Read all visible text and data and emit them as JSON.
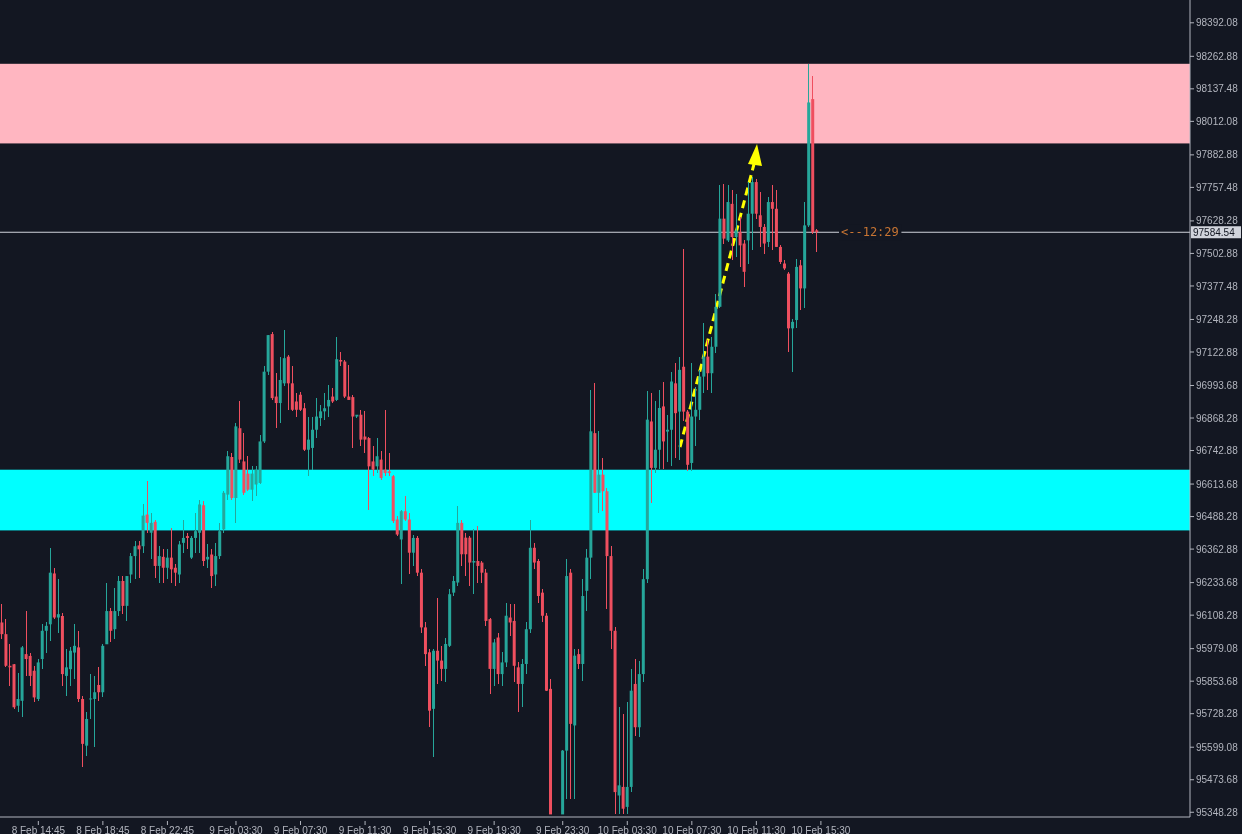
{
  "chart_data": {
    "type": "candlestick",
    "categories": [
      null,
      null,
      null,
      null,
      null,
      null,
      null,
      null,
      null,
      "8 Feb 14:45",
      null,
      null,
      null,
      null,
      null,
      null,
      null,
      null,
      null,
      null,
      null,
      null,
      null,
      null,
      null,
      "8 Feb 18:45",
      null,
      null,
      null,
      null,
      null,
      null,
      null,
      null,
      null,
      null,
      null,
      null,
      null,
      null,
      null,
      "8 Feb 22:45",
      null,
      null,
      null,
      null,
      null,
      null,
      null,
      null,
      null,
      null,
      null,
      null,
      null,
      null,
      null,
      null,
      "9 Feb 03:30",
      null,
      null,
      null,
      null,
      null,
      null,
      null,
      null,
      null,
      null,
      null,
      null,
      null,
      null,
      null,
      "9 Feb 07:30",
      null,
      null,
      null,
      null,
      null,
      null,
      null,
      null,
      null,
      null,
      null,
      null,
      null,
      null,
      null,
      "9 Feb 11:30",
      null,
      null,
      null,
      null,
      null,
      null,
      null,
      null,
      null,
      null,
      null,
      null,
      null,
      null,
      null,
      "9 Feb 15:30",
      null,
      null,
      null,
      null,
      null,
      null,
      null,
      null,
      null,
      null,
      null,
      null,
      null,
      null,
      null,
      "9 Feb 19:30",
      null,
      null,
      null,
      null,
      null,
      null,
      null,
      null,
      null,
      null,
      null,
      null,
      null,
      null,
      null,
      null,
      "9 Feb 23:30",
      null,
      null,
      null,
      null,
      null,
      null,
      null,
      null,
      null,
      null,
      null,
      null,
      null,
      null,
      null,
      "10 Feb 03:30",
      null,
      null,
      null,
      null,
      null,
      null,
      null,
      null,
      null,
      null,
      null,
      null,
      null,
      null,
      null,
      "10 Feb 07:30",
      null,
      null,
      null,
      null,
      null,
      null,
      null,
      null,
      null,
      null,
      null,
      null,
      null,
      null,
      null,
      "10 Feb 11:30",
      null,
      null,
      null,
      null,
      null,
      null,
      null,
      null,
      null,
      null,
      null,
      null,
      null,
      null,
      null,
      "10 Feb 15:30",
      null,
      null,
      null,
      null,
      null,
      null,
      null,
      null,
      null,
      null,
      null,
      null,
      null,
      null,
      null,
      null,
      null,
      null,
      null,
      null,
      null,
      null,
      null,
      null,
      null,
      null,
      null,
      null,
      null,
      null,
      null,
      null,
      null,
      null,
      null,
      null,
      null,
      null,
      null,
      null,
      null,
      null,
      null,
      null,
      null,
      null,
      null,
      null,
      null,
      null,
      null,
      null,
      null,
      null,
      null,
      null,
      null,
      null,
      null,
      null,
      null,
      null,
      null,
      null,
      null,
      null,
      null,
      null,
      null,
      null,
      null,
      null,
      null,
      null,
      null,
      null,
      null,
      null,
      null,
      null,
      null,
      null,
      null,
      null,
      null,
      null,
      null,
      null,
      null,
      null,
      null
    ],
    "ohlc": [
      [
        96080,
        96150,
        96016,
        96035
      ],
      [
        96035,
        96093,
        95907,
        95913
      ],
      [
        95913,
        95996,
        95836,
        95907
      ],
      [
        95919,
        95919,
        95746,
        95753
      ],
      [
        95759,
        95887,
        95734,
        95785
      ],
      [
        95778,
        95990,
        95714,
        95984
      ],
      [
        95958,
        96124,
        95874,
        95939
      ],
      [
        95951,
        95964,
        95836,
        95874
      ],
      [
        95894,
        95913,
        95772,
        95791
      ],
      [
        95785,
        95939,
        95778,
        95926
      ],
      [
        95939,
        96073,
        95900,
        96048
      ],
      [
        96048,
        96080,
        95964,
        96067
      ],
      [
        96073,
        96368,
        96009,
        96272
      ],
      [
        96269,
        96291,
        96093,
        96099
      ],
      [
        96099,
        96246,
        96041,
        96112
      ],
      [
        96105,
        96118,
        95836,
        95881
      ],
      [
        95874,
        95977,
        95798,
        95907
      ],
      [
        95900,
        95984,
        95836,
        95971
      ],
      [
        95964,
        96073,
        95862,
        95990
      ],
      [
        95984,
        96048,
        95772,
        95785
      ],
      [
        95785,
        95798,
        95522,
        95612
      ],
      [
        95605,
        95734,
        95567,
        95708
      ],
      [
        95785,
        95881,
        95708,
        95787
      ],
      [
        95785,
        95874,
        95599,
        95811
      ],
      [
        95839,
        95907,
        95778,
        95811
      ],
      [
        95811,
        95996,
        95791,
        95990
      ],
      [
        95996,
        96233,
        95996,
        96124
      ],
      [
        96124,
        96137,
        96003,
        96048
      ],
      [
        96054,
        96214,
        96016,
        96124
      ],
      [
        96124,
        96259,
        96105,
        96240
      ],
      [
        96240,
        96259,
        96112,
        96144
      ],
      [
        96144,
        96259,
        96086,
        96259
      ],
      [
        96265,
        96349,
        96233,
        96336
      ],
      [
        96336,
        96394,
        96246,
        96374
      ],
      [
        96377,
        96394,
        96253,
        96362
      ],
      [
        96374,
        96535,
        96349,
        96492
      ],
      [
        96496,
        96624,
        96426,
        96464
      ],
      [
        96426,
        96503,
        96323,
        96464
      ],
      [
        96468,
        96477,
        96253,
        96298
      ],
      [
        96298,
        96374,
        96233,
        96336
      ],
      [
        96333,
        96362,
        96233,
        96291
      ],
      [
        96291,
        96362,
        96246,
        96330
      ],
      [
        96330,
        96445,
        96233,
        96285
      ],
      [
        96291,
        96304,
        96221,
        96272
      ],
      [
        96265,
        96394,
        96233,
        96381
      ],
      [
        96387,
        96477,
        96349,
        96406
      ],
      [
        96413,
        96426,
        96362,
        96406
      ],
      [
        96330,
        96413,
        96323,
        96406
      ],
      [
        96406,
        96503,
        96349,
        96432
      ],
      [
        96426,
        96554,
        96349,
        96535
      ],
      [
        96532,
        96548,
        96298,
        96317
      ],
      [
        96323,
        96381,
        96291,
        96333
      ],
      [
        96342,
        96362,
        96214,
        96259
      ],
      [
        96265,
        96387,
        96221,
        96336
      ],
      [
        96336,
        96464,
        96323,
        96432
      ],
      [
        96439,
        96586,
        96426,
        96580
      ],
      [
        96573,
        96740,
        96554,
        96721
      ],
      [
        96718,
        96733,
        96554,
        96560
      ],
      [
        96560,
        96849,
        96464,
        96836
      ],
      [
        96829,
        96932,
        96695,
        96708
      ],
      [
        96701,
        96810,
        96573,
        96580
      ],
      [
        96654,
        96721,
        96586,
        96592
      ],
      [
        96592,
        96682,
        96548,
        96654
      ],
      [
        96612,
        96682,
        96567,
        96669
      ],
      [
        96618,
        96804,
        96612,
        96778
      ],
      [
        96778,
        97067,
        96772,
        97047
      ],
      [
        97047,
        97188,
        97035,
        97188
      ],
      [
        97192,
        97201,
        96938,
        96945
      ],
      [
        96951,
        97041,
        96829,
        96926
      ],
      [
        96926,
        97105,
        96849,
        97015
      ],
      [
        97002,
        97208,
        96990,
        97099
      ],
      [
        97105,
        97111,
        96900,
        97002
      ],
      [
        97002,
        97067,
        96894,
        96900
      ],
      [
        96932,
        96964,
        96874,
        96900
      ],
      [
        96958,
        96970,
        96894,
        96900
      ],
      [
        96906,
        96926,
        96740,
        96746
      ],
      [
        96746,
        96874,
        96644,
        96785
      ],
      [
        96753,
        96874,
        96669,
        96823
      ],
      [
        96823,
        96945,
        96791,
        96874
      ],
      [
        96868,
        96919,
        96836,
        96894
      ],
      [
        96894,
        96964,
        96861,
        96906
      ],
      [
        96913,
        96996,
        96874,
        96938
      ],
      [
        96951,
        96983,
        96926,
        96932
      ],
      [
        96938,
        97182,
        96932,
        97095
      ],
      [
        97092,
        97124,
        97067,
        97086
      ],
      [
        97086,
        97092,
        96945,
        96951
      ],
      [
        96951,
        97073,
        96938,
        96938
      ],
      [
        96949,
        96958,
        96753,
        96874
      ],
      [
        96874,
        96881,
        96868,
        96881
      ],
      [
        96881,
        96900,
        96759,
        96785
      ],
      [
        96797,
        96894,
        96733,
        96785
      ],
      [
        96791,
        96797,
        96515,
        96682
      ],
      [
        96701,
        96759,
        96644,
        96669
      ],
      [
        96682,
        96791,
        96656,
        96721
      ],
      [
        96708,
        96740,
        96631,
        96637
      ],
      [
        96669,
        96900,
        96644,
        96656
      ],
      [
        96663,
        96733,
        96644,
        96656
      ],
      [
        96644,
        96650,
        96464,
        96471
      ],
      [
        96477,
        96490,
        96413,
        96419
      ],
      [
        96400,
        96515,
        96227,
        96509
      ],
      [
        96509,
        96567,
        96471,
        96477
      ],
      [
        96477,
        96503,
        96265,
        96349
      ],
      [
        96349,
        96419,
        96298,
        96406
      ],
      [
        96406,
        96413,
        96259,
        96272
      ],
      [
        96272,
        96285,
        96041,
        96061
      ],
      [
        96061,
        96080,
        95913,
        95958
      ],
      [
        95965,
        95977,
        95676,
        95740
      ],
      [
        95747,
        95977,
        95561,
        95971
      ],
      [
        95971,
        96176,
        95843,
        95933
      ],
      [
        95933,
        95990,
        95856,
        95901
      ],
      [
        95901,
        96022,
        95849,
        95997
      ],
      [
        95990,
        96208,
        95984,
        96189
      ],
      [
        96195,
        96259,
        96182,
        96240
      ],
      [
        96234,
        96528,
        96221,
        96464
      ],
      [
        96464,
        96477,
        96298,
        96343
      ],
      [
        96407,
        96426,
        96259,
        96343
      ],
      [
        96407,
        96413,
        96221,
        96311
      ],
      [
        96311,
        96439,
        96189,
        96317
      ],
      [
        96317,
        96452,
        96234,
        96298
      ],
      [
        96311,
        96317,
        96234,
        96272
      ],
      [
        96272,
        96285,
        96067,
        96086
      ],
      [
        96093,
        96099,
        95804,
        95901
      ],
      [
        95901,
        96016,
        95836,
        96003
      ],
      [
        96022,
        96041,
        95843,
        95881
      ],
      [
        95881,
        95965,
        95836,
        95926
      ],
      [
        95926,
        96157,
        95907,
        96106
      ],
      [
        96099,
        96150,
        96029,
        96080
      ],
      [
        96086,
        96150,
        95849,
        95913
      ],
      [
        95907,
        95926,
        95734,
        95843
      ],
      [
        95843,
        95939,
        95753,
        95920
      ],
      [
        95920,
        96080,
        95881,
        96054
      ],
      [
        96054,
        96477,
        96041,
        96368
      ],
      [
        96368,
        96388,
        96285,
        96311
      ],
      [
        96317,
        96324,
        96157,
        96182
      ],
      [
        96195,
        96208,
        96080,
        96106
      ],
      [
        96106,
        96118,
        95817,
        95817
      ],
      [
        95824,
        95862,
        95340,
        95340
      ],
      null,
      null,
      [
        95340,
        95590,
        95340,
        95586
      ],
      [
        95586,
        96323,
        95401,
        96259
      ],
      [
        96272,
        96285,
        95401,
        95689
      ],
      [
        95683,
        95977,
        95401,
        95952
      ],
      [
        95958,
        95977,
        95901,
        95920
      ],
      [
        95920,
        96247,
        95856,
        96182
      ],
      [
        96202,
        96362,
        96125,
        96330
      ],
      [
        96330,
        96977,
        96247,
        96817
      ],
      [
        96810,
        97003,
        96579,
        96580
      ],
      [
        96580,
        96817,
        96503,
        96650
      ],
      [
        96650,
        96714,
        96508,
        96586
      ],
      [
        96586,
        96599,
        96131,
        96336
      ],
      [
        96336,
        96375,
        95977,
        96048
      ],
      [
        96048,
        96061,
        95340,
        95426
      ],
      [
        95413,
        95753,
        95340,
        95452
      ],
      [
        95446,
        95728,
        95340,
        95362
      ],
      [
        95369,
        95772,
        95340,
        95446
      ],
      [
        95446,
        95901,
        95426,
        95817
      ],
      [
        95843,
        95939,
        95644,
        95676
      ],
      [
        95676,
        95933,
        95638,
        95881
      ],
      [
        95881,
        96285,
        95849,
        96247
      ],
      [
        96247,
        96971,
        96234,
        96862
      ],
      [
        96855,
        96964,
        96541,
        96676
      ],
      [
        96676,
        96932,
        96657,
        96746
      ],
      [
        96746,
        96977,
        96670,
        96907
      ],
      [
        96913,
        97009,
        96670,
        96778
      ],
      [
        96816,
        96880,
        96700,
        96823
      ],
      [
        96823,
        97047,
        96682,
        97009
      ],
      [
        97002,
        97079,
        96714,
        96887
      ],
      [
        96893,
        97105,
        96707,
        97054
      ],
      [
        97066,
        97521,
        96855,
        96893
      ],
      [
        96893,
        96900,
        96663,
        96688
      ],
      [
        96695,
        97079,
        96663,
        96874
      ],
      [
        96874,
        96989,
        96759,
        96900
      ],
      [
        96900,
        97054,
        96861,
        97028
      ],
      [
        97028,
        97233,
        96964,
        97105
      ],
      [
        97105,
        97169,
        96977,
        97041
      ],
      [
        97041,
        97182,
        96964,
        97143
      ],
      [
        97143,
        97348,
        97118,
        97297
      ],
      [
        97297,
        97765,
        97291,
        97637
      ],
      [
        97637,
        97771,
        97541,
        97560
      ],
      [
        97553,
        97765,
        97547,
        97701
      ],
      [
        97694,
        97746,
        97477,
        97566
      ],
      [
        97566,
        97733,
        97489,
        97592
      ],
      [
        97585,
        97643,
        97451,
        97534
      ],
      [
        97541,
        97553,
        97374,
        97432
      ],
      [
        97553,
        97778,
        97464,
        97656
      ],
      [
        97656,
        97797,
        97515,
        97778
      ],
      [
        97778,
        97791,
        97637,
        97656
      ],
      [
        97650,
        97739,
        97528,
        97605
      ],
      [
        97605,
        97618,
        97502,
        97541
      ],
      [
        97547,
        97720,
        97528,
        97701
      ],
      [
        97701,
        97765,
        97515,
        97675
      ],
      [
        97675,
        97746,
        97528,
        97528
      ],
      [
        97528,
        97534,
        97464,
        97470
      ],
      [
        97464,
        97477,
        97438,
        97445
      ],
      [
        97425,
        97432,
        97124,
        97214
      ],
      [
        97214,
        97252,
        97047,
        97239
      ],
      [
        97246,
        97483,
        97214,
        97451
      ],
      [
        97457,
        97477,
        97284,
        97368
      ],
      [
        97368,
        97701,
        97291,
        97611
      ],
      [
        97611,
        98233,
        97605,
        98085
      ],
      [
        98098,
        98188,
        97579,
        97585
      ],
      [
        97592,
        97598,
        97509,
        97585
      ],
      null,
      null,
      null,
      null,
      null,
      null,
      null,
      null,
      null,
      null,
      null,
      null,
      null,
      null,
      null,
      null,
      null,
      null,
      null,
      null,
      null,
      null,
      null,
      null,
      null,
      null,
      null,
      null,
      null,
      null,
      null,
      null,
      null,
      null,
      null,
      null,
      null,
      null,
      null,
      null,
      null,
      null,
      null,
      null,
      null,
      null,
      null,
      null,
      null,
      null,
      null,
      null,
      null,
      null,
      null,
      null,
      null,
      null,
      null,
      null,
      null,
      null,
      null,
      null,
      null,
      null,
      null,
      null,
      null,
      null,
      null,
      null,
      null,
      null,
      null,
      null,
      null,
      null,
      null,
      null,
      null,
      null,
      null,
      null,
      null,
      null,
      null,
      null,
      null,
      null,
      null,
      null
    ],
    "ylim": [
      95330,
      98480
    ],
    "yticks": [
      98392.08,
      98262.88,
      98137.48,
      98012.08,
      97882.88,
      97757.48,
      97628.28,
      97502.88,
      97377.48,
      97248.28,
      97122.88,
      96993.68,
      96868.28,
      96742.88,
      96613.68,
      96488.28,
      96362.88,
      96233.68,
      96108.28,
      95979.08,
      95853.68,
      95728.28,
      95599.08,
      95473.68,
      95348.28
    ],
    "ref_lines": [
      {
        "axis": "y",
        "value": 97584.54,
        "label": "97584.54",
        "color": "#d1d4dc"
      }
    ],
    "bands": [
      {
        "axis": "y",
        "from": 97927,
        "to": 98234,
        "color": "#ffb6c1"
      },
      {
        "axis": "y",
        "from": 96435,
        "to": 96669,
        "color": "#00ffff"
      }
    ],
    "annotations": [
      "<--12:29"
    ]
  }
}
